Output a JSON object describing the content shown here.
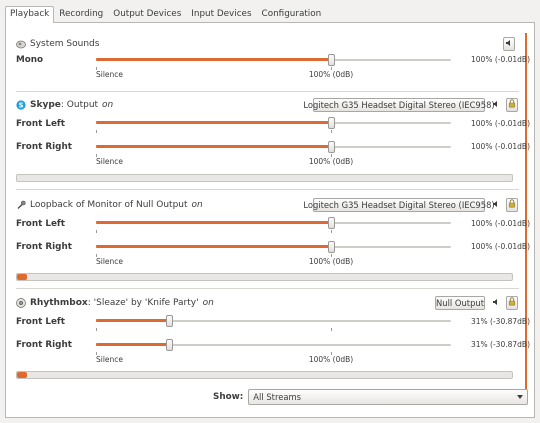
{
  "tabs": [
    "Playback",
    "Recording",
    "Output Devices",
    "Input Devices",
    "Configuration"
  ],
  "active_tab": "Playback",
  "accent_color": "#e06a2c",
  "scale_labels": {
    "silence": "Silence",
    "zero_db": "100% (0dB)"
  },
  "streams": [
    {
      "name": "System Sounds",
      "subtitle": "",
      "on_label": "",
      "icon": "speaker-icon",
      "channels": [
        {
          "label": "Mono",
          "percent": 100,
          "value": "100% (-0.01dB)"
        }
      ]
    },
    {
      "name": "Skype",
      "subtitle": " : Output",
      "on_label": "on",
      "icon": "skype-icon",
      "device": "Logitech G35 Headset Digital Stereo (IEC958)",
      "channels": [
        {
          "label": "Front Left",
          "percent": 100,
          "value": "100% (-0.01dB)"
        },
        {
          "label": "Front Right",
          "percent": 100,
          "value": "100% (-0.01dB)"
        }
      ],
      "peak": 0
    },
    {
      "name": "",
      "subtitle": "Loopback of Monitor of Null Output",
      "on_label": "on",
      "icon": "loopback-icon",
      "device": "Logitech G35 Headset Digital Stereo (IEC958)",
      "channels": [
        {
          "label": "Front Left",
          "percent": 100,
          "value": "100% (-0.01dB)"
        },
        {
          "label": "Front Right",
          "percent": 100,
          "value": "100% (-0.01dB)"
        }
      ],
      "peak": 0.02
    },
    {
      "name": "Rhythmbox",
      "subtitle": ": 'Sleaze' by 'Knife Party'",
      "on_label": "on",
      "icon": "rhythmbox-icon",
      "device": "Null Output",
      "channels": [
        {
          "label": "Front Left",
          "percent": 31,
          "value": "31% (-30.87dB)"
        },
        {
          "label": "Front Right",
          "percent": 31,
          "value": "31% (-30.87dB)"
        }
      ],
      "peak": 0.02
    }
  ],
  "show": {
    "label": "Show:",
    "value": "All Streams"
  }
}
